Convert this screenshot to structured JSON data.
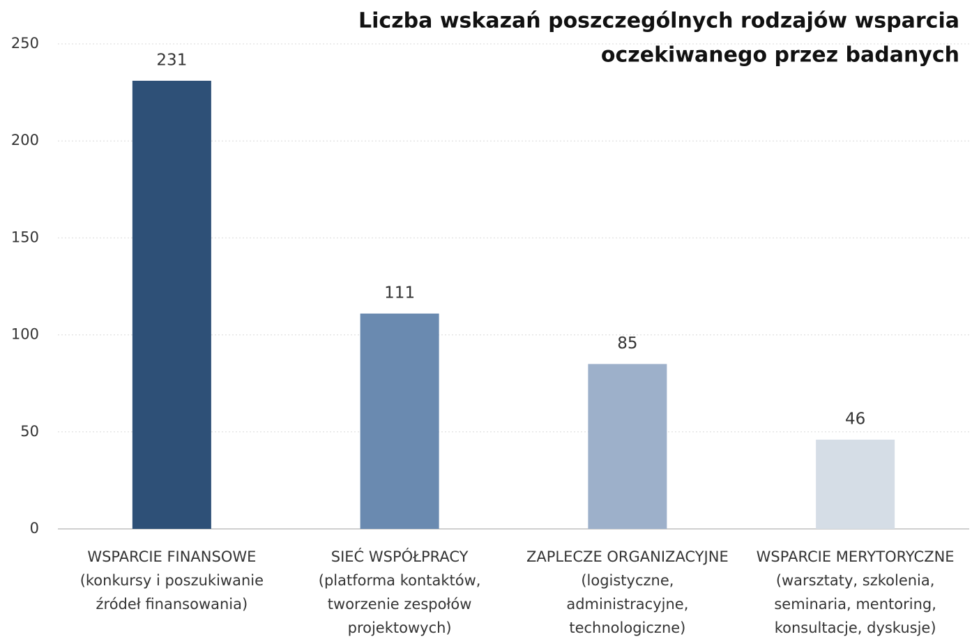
{
  "chart_data": {
    "type": "bar",
    "title": [
      "Liczba wskazań poszczególnych rodzajów wsparcia",
      "oczekiwanego przez badanych"
    ],
    "categories": [
      [
        "WSPARCIE FINANSOWE",
        "(konkursy i poszukiwanie",
        "źródeł finansowania)"
      ],
      [
        "SIEĆ WSPÓŁPRACY",
        "(platforma kontaktów,",
        "tworzenie zespołów",
        "projektowych)"
      ],
      [
        "ZAPLECZE ORGANIZACYJNE",
        "(logistyczne,",
        "administracyjne,",
        "technologiczne)"
      ],
      [
        "WSPARCIE MERYTORYCZNE",
        "(warsztaty, szkolenia,",
        "seminaria, mentoring,",
        "konsultacje, dyskusje)"
      ]
    ],
    "values": [
      231,
      111,
      85,
      46
    ],
    "colors": [
      "#2e5077",
      "#6a8ab0",
      "#9db0ca",
      "#d5dde6"
    ],
    "ylim": [
      0,
      250
    ],
    "yticks": [
      0,
      50,
      100,
      150,
      200,
      250
    ],
    "grid": true
  }
}
